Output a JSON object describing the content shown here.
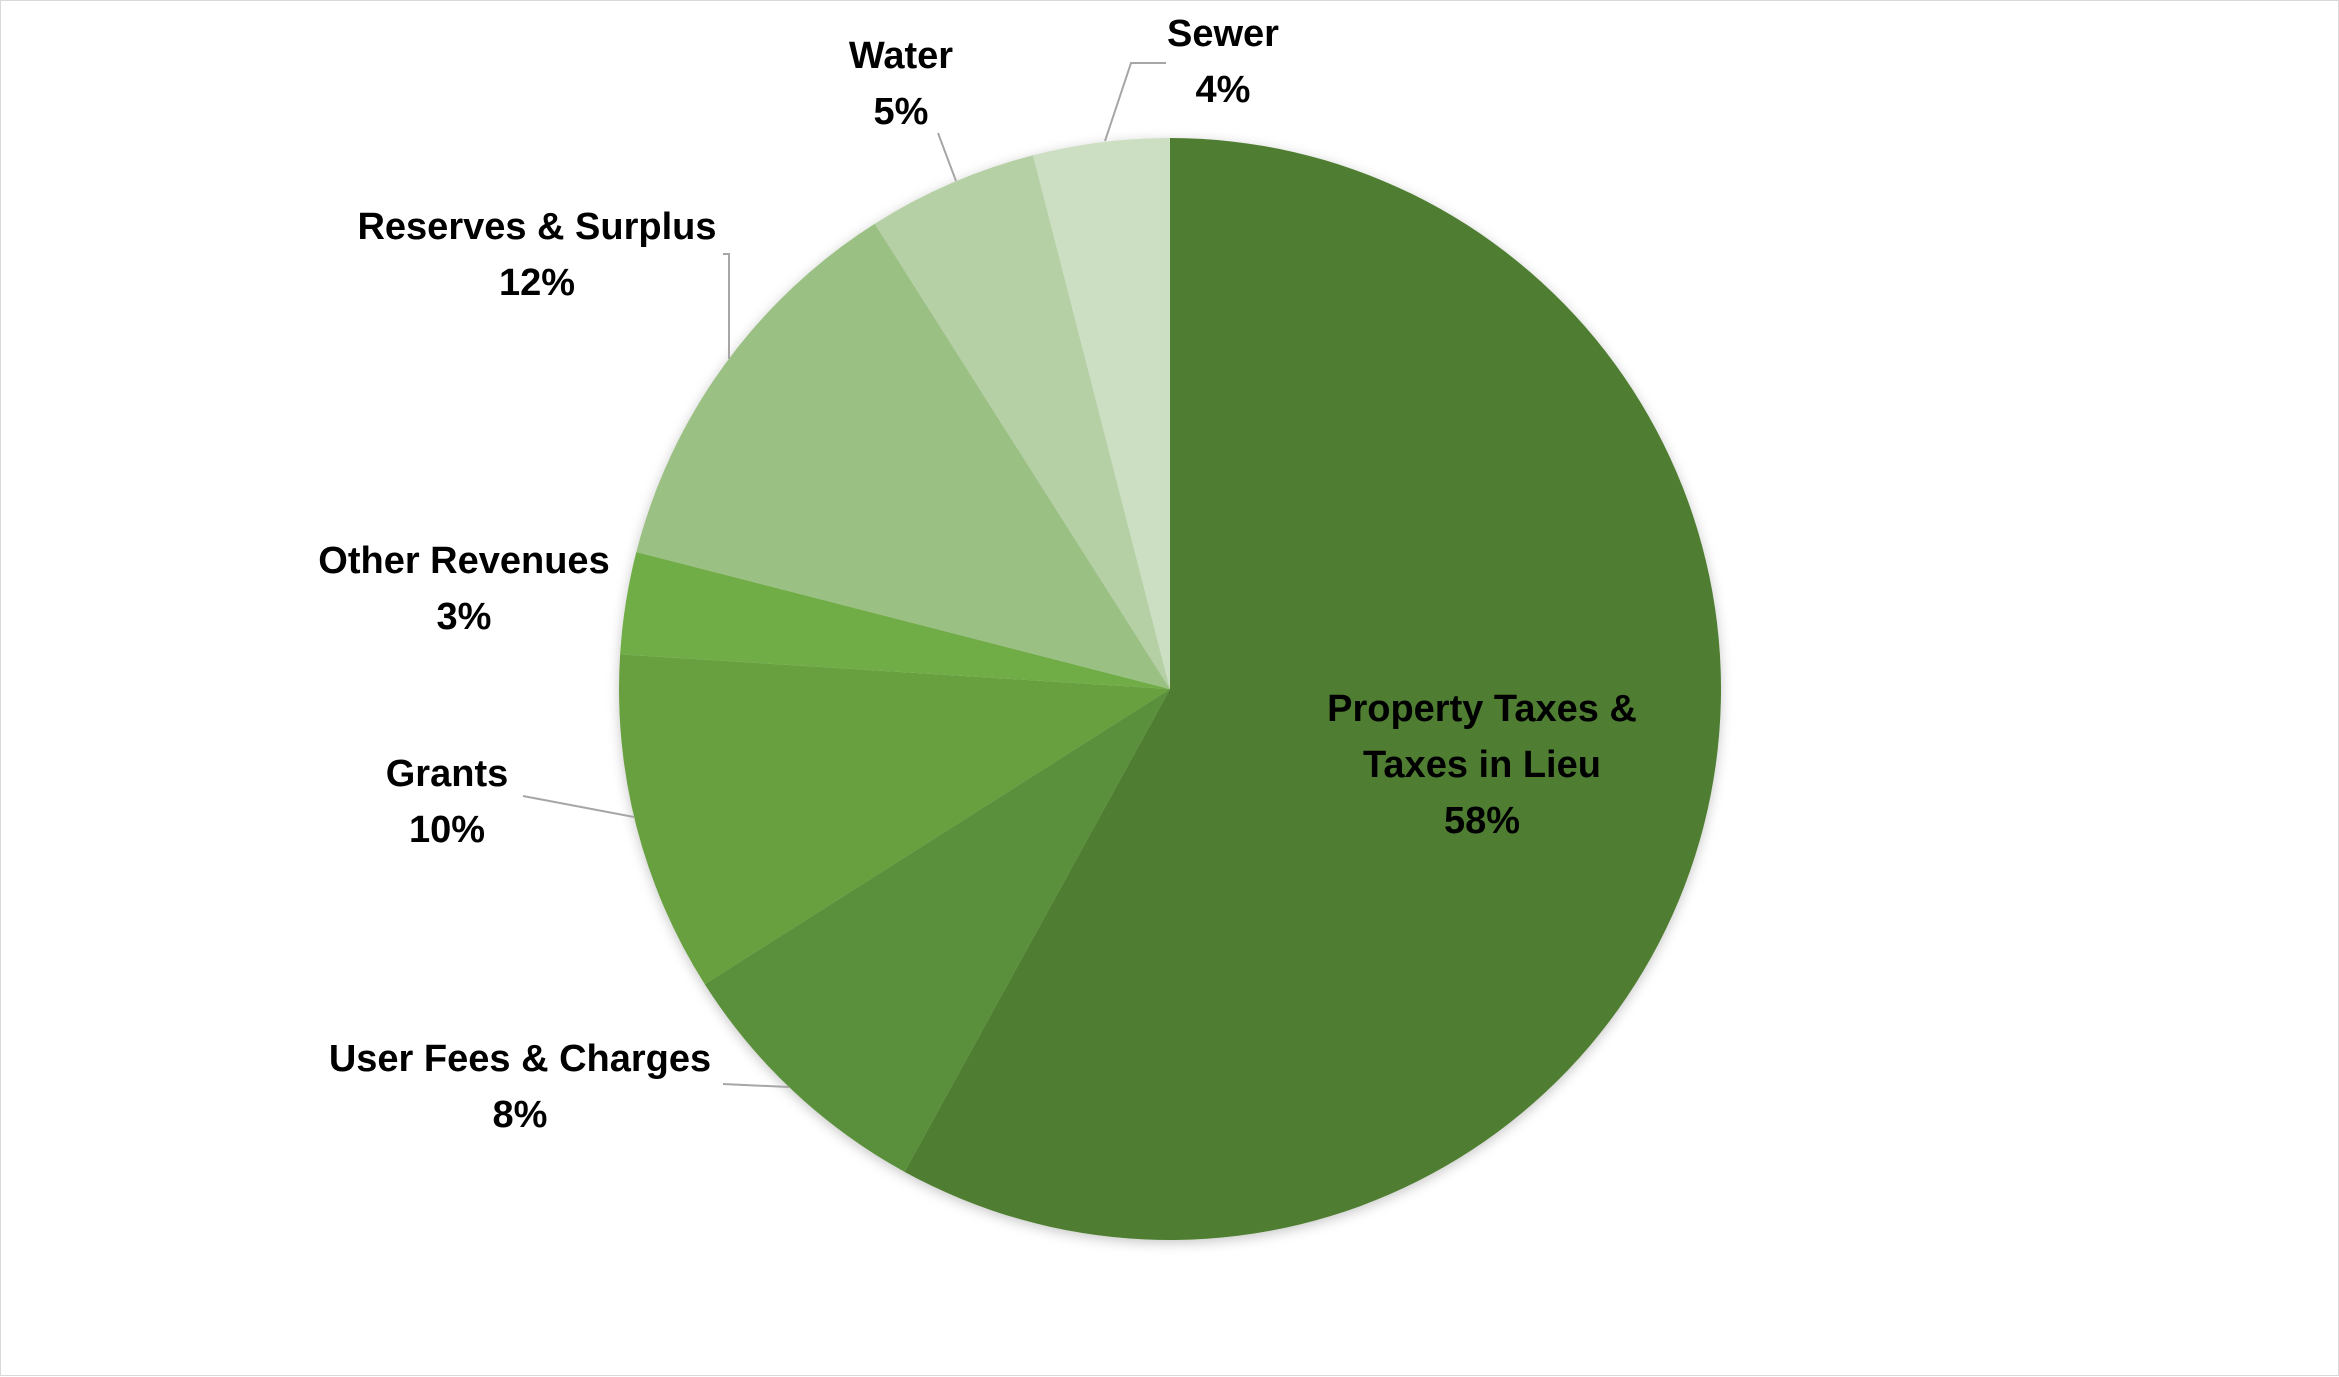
{
  "chart_data": {
    "type": "pie",
    "title": "",
    "start_angle_deg": 0,
    "direction": "clockwise",
    "slices": [
      {
        "label_lines": [
          "Property Taxes &",
          "Taxes in Lieu"
        ],
        "value": 58,
        "display": "58%",
        "color": "#507e32"
      },
      {
        "label_lines": [
          "User Fees & Charges"
        ],
        "value": 8,
        "display": "8%",
        "color": "#5a8f3a"
      },
      {
        "label_lines": [
          "Grants"
        ],
        "value": 10,
        "display": "10%",
        "color": "#68a041"
      },
      {
        "label_lines": [
          "Other Revenues"
        ],
        "value": 3,
        "display": "3%",
        "color": "#70ad47"
      },
      {
        "label_lines": [
          "Reserves & Surplus"
        ],
        "value": 12,
        "display": "12%",
        "color": "#9bc083"
      },
      {
        "label_lines": [
          "Water"
        ],
        "value": 5,
        "display": "5%",
        "color": "#b6d0a6"
      },
      {
        "label_lines": [
          "Sewer"
        ],
        "value": 4,
        "display": "4%",
        "color": "#cddfc3"
      }
    ],
    "leader_line_color": "#a6a6a6"
  }
}
